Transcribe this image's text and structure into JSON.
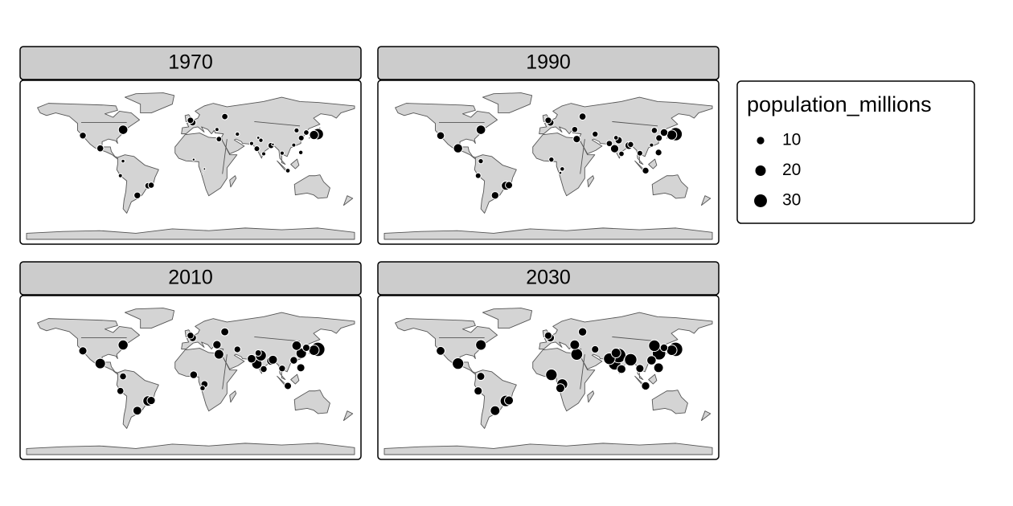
{
  "chart_data": {
    "type": "bubble-map",
    "lon": [
      139.7,
      135.5,
      -74,
      -99.1,
      -118.2,
      -46.6,
      -43.2,
      -58.4,
      2.3,
      -0.1,
      37.6,
      31.2,
      72.8,
      77.2,
      88.4,
      90.4,
      67,
      121.5,
      116.4,
      127,
      121,
      106.8,
      3.4,
      15.3,
      29,
      51.4,
      100.5,
      -77,
      -74.1,
      113.3,
      74.3,
      80.3,
      13.2
    ],
    "lat": [
      35.7,
      34.7,
      40.7,
      19.4,
      34,
      -23.5,
      -22.9,
      -34.6,
      48.9,
      51.5,
      55.8,
      30,
      19,
      28.6,
      22.6,
      23.8,
      24.9,
      31.2,
      39.9,
      37.5,
      14.6,
      -6.2,
      6.5,
      -4.3,
      41,
      35.7,
      13.8,
      -12,
      4.7,
      23.1,
      31.5,
      13.1,
      -8.8
    ],
    "panels": [
      {
        "title": "1970",
        "values": [
          23.3,
          15.3,
          16.2,
          8.8,
          8.4,
          7.6,
          6.8,
          8.4,
          8.2,
          7.5,
          7.1,
          5.6,
          5.8,
          3.5,
          6.9,
          1.4,
          3.1,
          6.0,
          4.4,
          5.3,
          3.5,
          3.9,
          1.4,
          1.0,
          2.8,
          3.3,
          3.1,
          2.9,
          2.4,
          3.0,
          1.6,
          3.0,
          0.5
        ]
      },
      {
        "title": "1990",
        "values": [
          32.5,
          18.4,
          16.1,
          15.6,
          10.9,
          14.8,
          9.7,
          10.5,
          9.3,
          8.0,
          9.0,
          9.9,
          12.4,
          9.7,
          10.9,
          6.6,
          7.1,
          7.8,
          6.8,
          10.5,
          8.0,
          8.2,
          4.8,
          3.7,
          6.6,
          6.4,
          5.9,
          5.8,
          4.7,
          3.1,
          3.9,
          5.3,
          1.6
        ]
      },
      {
        "title": "2010",
        "values": [
          36.8,
          19.5,
          18.4,
          20.1,
          12.2,
          19.7,
          12.4,
          14.2,
          10.5,
          8.6,
          11.5,
          16.9,
          19.4,
          21.9,
          14.3,
          14.7,
          13.5,
          19.9,
          16.2,
          9.8,
          11.9,
          9.6,
          10.8,
          9.0,
          12.7,
          8.1,
          8.2,
          8.9,
          8.7,
          10.5,
          7.6,
          8.5,
          5.0
        ]
      },
      {
        "title": "2030",
        "values": [
          37.2,
          20.0,
          20.0,
          24.1,
          14.0,
          23.8,
          14.5,
          17.0,
          11.8,
          10.0,
          12.8,
          25.5,
          27.8,
          38.9,
          19.1,
          28.1,
          24.8,
          32.9,
          24.3,
          10.5,
          16.8,
          12.7,
          24.2,
          21.9,
          17.0,
          10.0,
          12.1,
          12.2,
          11.6,
          16.0,
          16.9,
          14.0,
          14.5
        ]
      }
    ],
    "color": "#000000",
    "legend": {
      "title": "population_millions",
      "sizes": [
        10,
        20,
        30
      ]
    }
  }
}
